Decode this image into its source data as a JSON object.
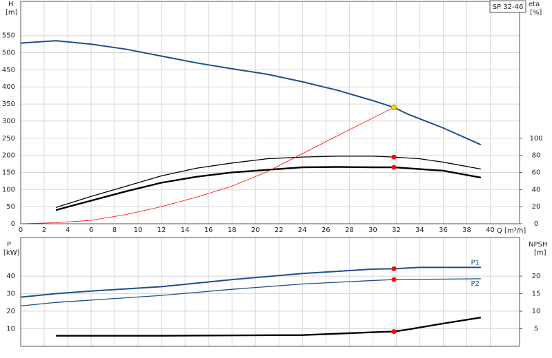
{
  "chart_data": [
    {
      "type": "line",
      "title": "SP 32-46",
      "xlabel": "Q [m³/h]",
      "ylabel": "H",
      "ylabel_unit": "[m]",
      "y2label": "eta",
      "y2label_unit": "[%]",
      "xlim": [
        0,
        42.5
      ],
      "xticks": [
        0,
        2,
        4,
        6,
        8,
        10,
        12,
        14,
        16,
        18,
        20,
        22,
        24,
        26,
        28,
        30,
        32,
        34,
        36,
        38,
        40
      ],
      "ylim": [
        0,
        650
      ],
      "yticks": [
        0,
        50,
        100,
        150,
        200,
        250,
        300,
        350,
        400,
        450,
        500,
        550
      ],
      "y2lim": [
        0,
        260
      ],
      "y2ticks": [
        0,
        20,
        40,
        60,
        80,
        100
      ],
      "grid": true,
      "series": [
        {
          "color": "#1f4e8c",
          "width": 2,
          "axis": "y",
          "x": [
            0,
            3,
            6,
            9,
            12,
            15,
            18,
            21,
            24,
            27,
            30,
            31.8,
            33,
            36,
            39.2
          ],
          "values": [
            528,
            535,
            525,
            510,
            490,
            470,
            453,
            437,
            415,
            390,
            360,
            340,
            320,
            280,
            231
          ]
        },
        {
          "color": "#000000",
          "width": 1.3,
          "axis": "y2",
          "x": [
            3,
            6,
            9,
            12,
            15,
            18,
            21,
            24,
            27,
            30,
            31.8,
            34,
            36,
            39.2
          ],
          "values": [
            19,
            32,
            44,
            56,
            65,
            71,
            76,
            78,
            79,
            79,
            78,
            76,
            72,
            64
          ]
        },
        {
          "color": "#000000",
          "width": 2.4,
          "axis": "y2",
          "x": [
            3,
            6,
            9,
            12,
            15,
            18,
            21,
            24,
            27,
            30,
            31.8,
            36,
            39.2
          ],
          "values": [
            16,
            27,
            38,
            48,
            55,
            60,
            63,
            66,
            66.4,
            66,
            66,
            62,
            54
          ]
        },
        {
          "color": "#ff0000",
          "width": 0.8,
          "axis": "y",
          "x": [
            0,
            3,
            6,
            9,
            12,
            15,
            18,
            21,
            24,
            28,
            31.8
          ],
          "values": [
            0,
            3,
            10,
            27,
            50,
            78,
            110,
            152,
            205,
            275,
            340
          ]
        }
      ],
      "points": [
        {
          "x": 31.8,
          "y": 340,
          "axis": "y",
          "color": "#ffd400"
        },
        {
          "x": 31.8,
          "y": 78,
          "axis": "y2",
          "color": "#ff0000"
        },
        {
          "x": 31.8,
          "y": 66,
          "axis": "y2",
          "color": "#ff0000"
        }
      ]
    },
    {
      "type": "line",
      "ylabel": "P",
      "ylabel_unit": "[kW]",
      "y2label": "NPSH",
      "y2label_unit": "[m]",
      "xlim": [
        0,
        42.5
      ],
      "xticks": [
        0,
        2,
        4,
        6,
        8,
        10,
        12,
        14,
        16,
        18,
        20,
        22,
        24,
        26,
        28,
        30,
        32,
        34,
        36,
        38,
        40
      ],
      "xtick_labels": false,
      "ylim": [
        0,
        62
      ],
      "yticks": [
        10,
        20,
        30,
        40
      ],
      "y2lim": [
        0,
        31
      ],
      "y2ticks": [
        5,
        10,
        15,
        20
      ],
      "grid": true,
      "series": [
        {
          "name": "P1",
          "color": "#1f4e8c",
          "width": 2,
          "axis": "y",
          "x": [
            0,
            3,
            6,
            12,
            18,
            24,
            30,
            31.8,
            34,
            39.2
          ],
          "values": [
            28,
            30,
            31.5,
            34,
            38,
            41.5,
            44,
            44.2,
            45,
            45
          ]
        },
        {
          "name": "P2",
          "color": "#1f4e8c",
          "width": 1.3,
          "axis": "y",
          "x": [
            0,
            3,
            12,
            18,
            24,
            30,
            31.8,
            39.2
          ],
          "values": [
            23,
            25,
            29,
            32.5,
            35.5,
            37.5,
            38,
            38.5
          ]
        },
        {
          "color": "#000000",
          "width": 2.4,
          "axis": "y2",
          "x": [
            3,
            12,
            24,
            30,
            31.8,
            33,
            36,
            39.2
          ],
          "values": [
            3,
            3,
            3.2,
            4,
            4.2,
            4.8,
            6.5,
            8.2
          ]
        }
      ],
      "points": [
        {
          "x": 31.8,
          "y": 44.2,
          "axis": "y",
          "color": "#ff0000"
        },
        {
          "x": 31.8,
          "y": 38,
          "axis": "y",
          "color": "#ff0000"
        },
        {
          "x": 31.8,
          "y": 4.2,
          "axis": "y2",
          "color": "#ff0000"
        }
      ]
    }
  ]
}
